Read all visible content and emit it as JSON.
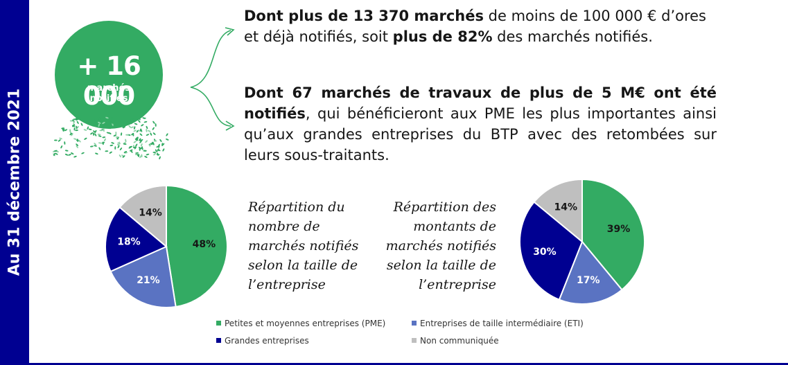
{
  "side_label": "Au 31 décembre 2021",
  "stat": {
    "number": "+ 16 000",
    "caption_line1": "marchés",
    "caption_line2": "notifiés"
  },
  "paragraph1": {
    "b1": "Dont plus de 13 370 marchés",
    "t1": " de moins de 100 000 € d’ores et déjà notifiés, soit ",
    "b2": "plus de 82%",
    "t2": " des marchés notifiés."
  },
  "paragraph2": {
    "b1": "Dont 67 marchés de travaux de plus de 5 M€ ont été notifiés",
    "t1": ", qui  bénéficieront aux PME les plus importantes ainsi qu’aux grandes entreprises du BTP avec des retombées sur leurs sous-traitants."
  },
  "colors": {
    "pme": "#33ab63",
    "eti": "#5a73c2",
    "ge": "#000091",
    "nc": "#bfbfbf",
    "band": "#000091"
  },
  "chart_data": [
    {
      "type": "pie",
      "title": "Répartition du\nnombre de\nmarchés notifiés\nselon la taille de\nl’entreprise",
      "categories": [
        "Petites et moyennes entreprises (PME)",
        "Entreprises de taille intermédiaire (ETI)",
        "Grandes entreprises",
        "Non communiquée"
      ],
      "values": [
        48,
        21,
        18,
        14
      ],
      "labels": [
        "48%",
        "21%",
        "18%",
        "14%"
      ]
    },
    {
      "type": "pie",
      "title": "Répartition des\nmontants de\nmarchés notifiés\nselon la taille de\nl’entreprise",
      "categories": [
        "Petites et moyennes entreprises (PME)",
        "Entreprises de taille intermédiaire (ETI)",
        "Grandes entreprises",
        "Non communiquée"
      ],
      "values": [
        39,
        17,
        30,
        14
      ],
      "labels": [
        "39%",
        "17%",
        "30%",
        "14%"
      ]
    }
  ],
  "legend": [
    {
      "label": "Petites et moyennes entreprises (PME)",
      "color": "#33ab63"
    },
    {
      "label": "Entreprises de taille intermédiaire (ETI)",
      "color": "#5a73c2"
    },
    {
      "label": "Grandes entreprises",
      "color": "#000091"
    },
    {
      "label": "Non communiquée",
      "color": "#bfbfbf"
    }
  ]
}
